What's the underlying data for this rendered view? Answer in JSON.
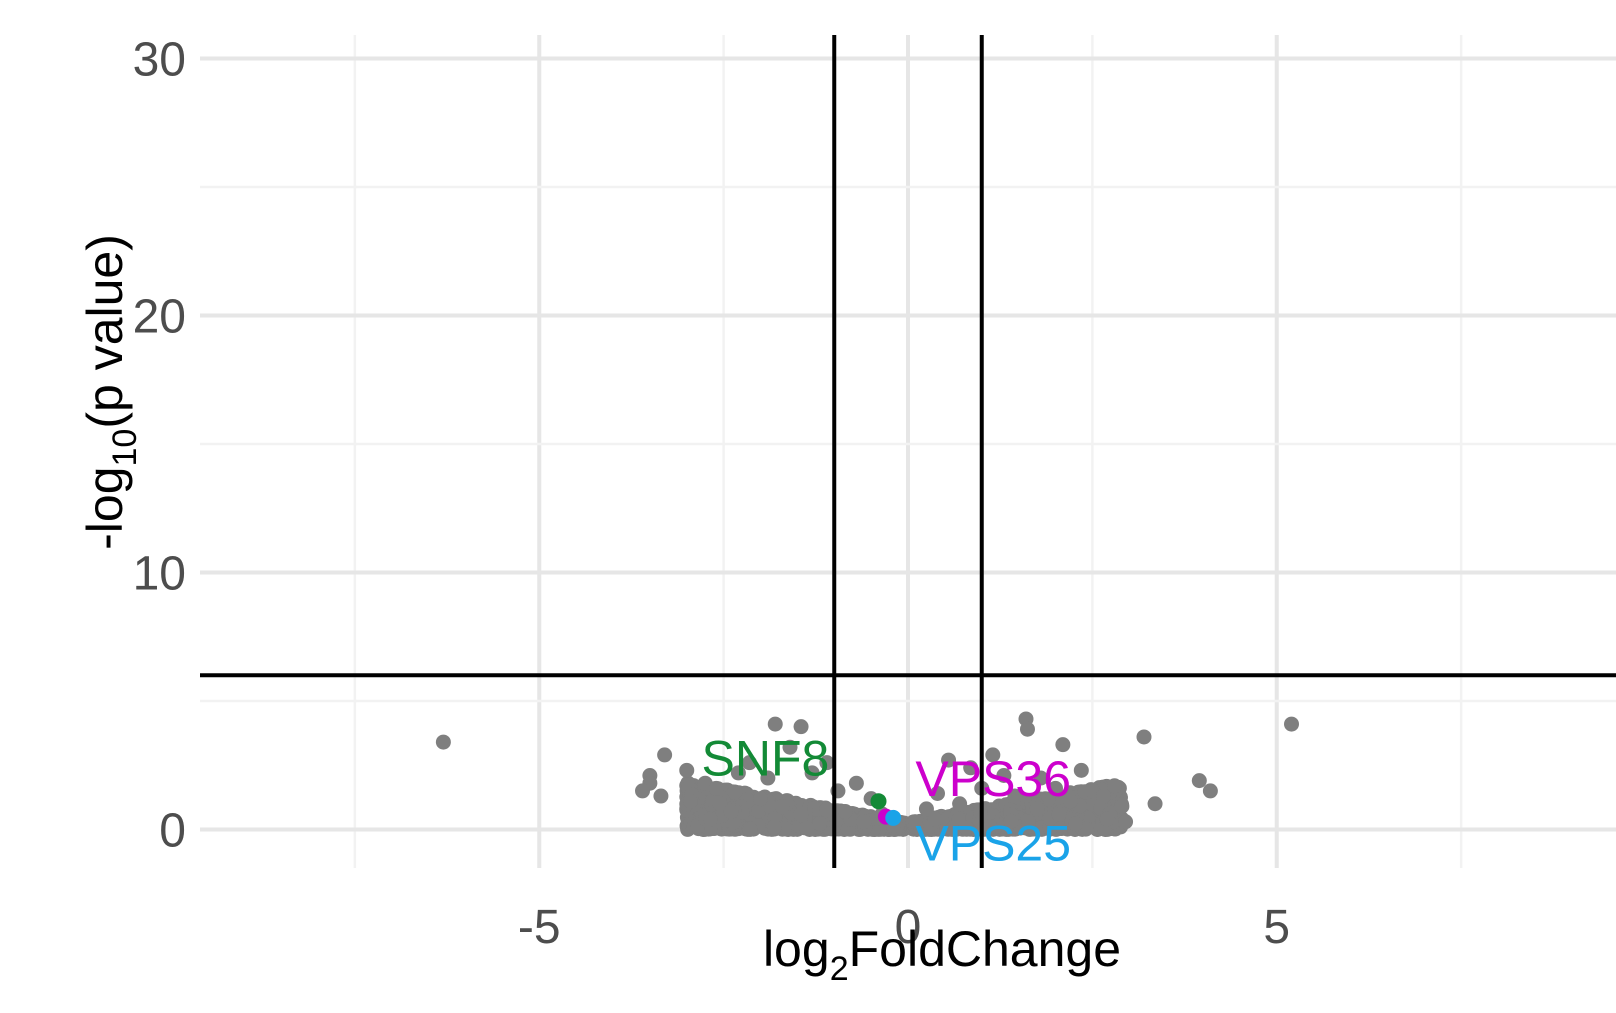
{
  "chart_data": {
    "type": "scatter",
    "title": "",
    "xlabel": {
      "base": "log",
      "sub": "2",
      "rest": "FoldChange"
    },
    "ylabel": {
      "pre": "-log",
      "sub": "10",
      "rest": "(p value)"
    },
    "xlim": [
      -9.6,
      9.6
    ],
    "ylim": [
      -1.5,
      31.5
    ],
    "x_ticks": [
      -5,
      0,
      5
    ],
    "x_tick_labels": [
      "-5",
      "0",
      "5"
    ],
    "y_ticks": [
      0,
      10,
      20,
      30
    ],
    "y_tick_labels": [
      "0",
      "10",
      "20",
      "30"
    ],
    "grid": true,
    "thresholds": {
      "vertical": [
        -1,
        1
      ],
      "horizontal": 6
    },
    "point_color": "#7f7f7f",
    "points": [
      [
        -6.3,
        3.4
      ],
      [
        -3.3,
        2.9
      ],
      [
        -3.5,
        2.1
      ],
      [
        -3.5,
        1.8
      ],
      [
        -3.6,
        1.5
      ],
      [
        -3.35,
        1.3
      ],
      [
        -3.0,
        2.3
      ],
      [
        -2.95,
        1.1
      ],
      [
        -2.75,
        1.8
      ],
      [
        -2.6,
        1.6
      ],
      [
        -2.55,
        1.0
      ],
      [
        -2.4,
        0.7
      ],
      [
        -2.3,
        2.2
      ],
      [
        -2.15,
        2.6
      ],
      [
        -2.0,
        1.2
      ],
      [
        -1.9,
        2.0
      ],
      [
        -1.8,
        4.1
      ],
      [
        -1.6,
        3.2
      ],
      [
        -1.45,
        4.0
      ],
      [
        -1.3,
        2.2
      ],
      [
        -1.1,
        2.6
      ],
      [
        -0.95,
        1.5
      ],
      [
        -0.85,
        0.7
      ],
      [
        -0.7,
        1.8
      ],
      [
        -0.6,
        0.3
      ],
      [
        -0.5,
        1.2
      ],
      [
        -0.35,
        0.6
      ],
      [
        -0.2,
        0.15
      ],
      [
        0.1,
        0.3
      ],
      [
        0.25,
        0.8
      ],
      [
        0.4,
        1.4
      ],
      [
        0.55,
        2.7
      ],
      [
        0.7,
        1.0
      ],
      [
        0.85,
        2.4
      ],
      [
        1.0,
        1.6
      ],
      [
        1.15,
        2.9
      ],
      [
        1.3,
        2.1
      ],
      [
        1.45,
        1.3
      ],
      [
        1.6,
        4.3
      ],
      [
        1.62,
        3.9
      ],
      [
        1.8,
        2.0
      ],
      [
        2.0,
        1.6
      ],
      [
        2.1,
        3.3
      ],
      [
        2.2,
        1.1
      ],
      [
        2.35,
        2.3
      ],
      [
        2.5,
        1.5
      ],
      [
        2.65,
        1.3
      ],
      [
        2.7,
        0.4
      ],
      [
        2.8,
        1.7
      ],
      [
        2.9,
        0.9
      ],
      [
        2.95,
        0.3
      ],
      [
        3.2,
        3.6
      ],
      [
        3.35,
        1.0
      ],
      [
        3.95,
        1.9
      ],
      [
        4.1,
        1.5
      ],
      [
        5.2,
        4.1
      ]
    ],
    "cloud_color": "#7f7f7f",
    "cloud_left": {
      "x_start": -3.0,
      "x_end": -0.05,
      "y_max_at_start": 1.9,
      "y_max_at_end": 0.25
    },
    "cloud_right": {
      "x_start": 0.05,
      "x_end": 2.9,
      "y_max_at_start": 0.3,
      "y_max_at_end": 1.8
    },
    "highlighted": [
      {
        "gene": "SNF8",
        "x": -0.4,
        "y": 1.1,
        "color": "#138a36"
      },
      {
        "gene": "VPS36",
        "x": -0.3,
        "y": 0.5,
        "color": "#cc00cc"
      },
      {
        "gene": "VPS25",
        "x": -0.2,
        "y": 0.45,
        "color": "#1aa3e8"
      }
    ],
    "annotations": [
      {
        "text": "SNF8",
        "x": -2.8,
        "y": 2.1,
        "color": "#138a36"
      },
      {
        "text": "VPS36",
        "x": 0.1,
        "y": 1.3,
        "color": "#cc00cc"
      },
      {
        "text": "VPS25",
        "x": 0.1,
        "y": -1.2,
        "color": "#1aa3e8"
      }
    ]
  }
}
